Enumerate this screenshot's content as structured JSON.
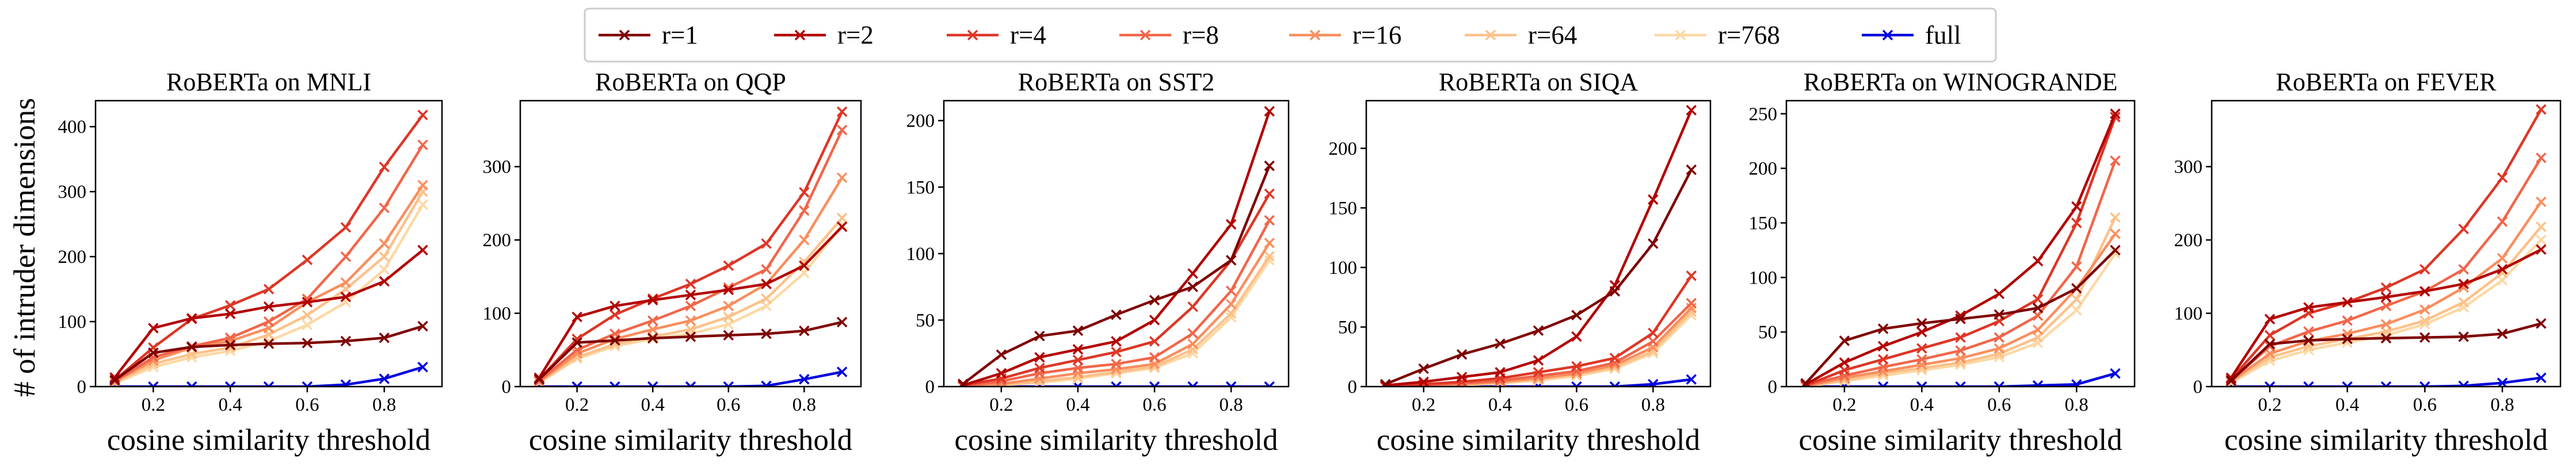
{
  "figure": {
    "ylabel": "# of intruder dimensions",
    "xlabel": "cosine similarity threshold"
  },
  "legend": [
    {
      "label": "r=1",
      "color": "#7f0000"
    },
    {
      "label": "r=2",
      "color": "#b30000"
    },
    {
      "label": "r=4",
      "color": "#de3626"
    },
    {
      "label": "r=8",
      "color": "#f1664a"
    },
    {
      "label": "r=16",
      "color": "#fa8e5e"
    },
    {
      "label": "r=64",
      "color": "#fdc18a"
    },
    {
      "label": "r=768",
      "color": "#fdd8a4"
    },
    {
      "label": "full",
      "color": "#0000dd"
    }
  ],
  "chart_data": [
    {
      "type": "line",
      "title": "RoBERTa on MNLI",
      "xlabel": "cosine similarity threshold",
      "ylabel": "# of intruder dimensions",
      "xlim": [
        0.05,
        0.95
      ],
      "ylim": [
        0,
        440
      ],
      "xticks": [
        0.2,
        0.4,
        0.6,
        0.8
      ],
      "xtick_labels": [
        "0.2",
        "0.4",
        "0.6",
        "0.8"
      ],
      "yticks": [
        0,
        100,
        200,
        300,
        400
      ],
      "ytick_labels": [
        "0",
        "100",
        "200",
        "300",
        "400"
      ],
      "x": [
        0.1,
        0.2,
        0.3,
        0.4,
        0.5,
        0.6,
        0.7,
        0.8,
        0.9
      ],
      "series": [
        {
          "name": "r=1",
          "values": [
            10,
            52,
            61,
            64,
            66,
            67,
            70,
            75,
            93
          ]
        },
        {
          "name": "r=2",
          "values": [
            14,
            90,
            105,
            112,
            123,
            130,
            138,
            162,
            210
          ]
        },
        {
          "name": "r=4",
          "values": [
            10,
            60,
            104,
            125,
            150,
            195,
            245,
            338,
            418
          ]
        },
        {
          "name": "r=8",
          "values": [
            8,
            45,
            62,
            75,
            100,
            135,
            200,
            275,
            372
          ]
        },
        {
          "name": "r=16",
          "values": [
            8,
            40,
            60,
            70,
            90,
            130,
            160,
            220,
            310
          ]
        },
        {
          "name": "r=64",
          "values": [
            6,
            35,
            50,
            60,
            80,
            110,
            150,
            200,
            300
          ]
        },
        {
          "name": "r=768",
          "values": [
            5,
            30,
            45,
            55,
            70,
            95,
            130,
            180,
            280
          ]
        },
        {
          "name": "full",
          "values": [
            0,
            0,
            0,
            0,
            0,
            0,
            3,
            12,
            30
          ]
        }
      ]
    },
    {
      "type": "line",
      "title": "RoBERTa on QQP",
      "xlabel": "cosine similarity threshold",
      "ylabel": "",
      "xlim": [
        0.05,
        0.95
      ],
      "ylim": [
        0,
        390
      ],
      "xticks": [
        0.2,
        0.4,
        0.6,
        0.8
      ],
      "xtick_labels": [
        "0.2",
        "0.4",
        "0.6",
        "0.8"
      ],
      "yticks": [
        0,
        100,
        200,
        300
      ],
      "ytick_labels": [
        "0",
        "100",
        "200",
        "300"
      ],
      "x": [
        0.1,
        0.2,
        0.3,
        0.4,
        0.5,
        0.6,
        0.7,
        0.8,
        0.9
      ],
      "series": [
        {
          "name": "r=1",
          "values": [
            10,
            60,
            63,
            66,
            68,
            70,
            72,
            76,
            88
          ]
        },
        {
          "name": "r=2",
          "values": [
            12,
            95,
            110,
            118,
            125,
            132,
            140,
            165,
            218
          ]
        },
        {
          "name": "r=4",
          "values": [
            10,
            65,
            98,
            120,
            140,
            165,
            195,
            265,
            375
          ]
        },
        {
          "name": "r=8",
          "values": [
            8,
            50,
            72,
            90,
            110,
            135,
            160,
            240,
            350
          ]
        },
        {
          "name": "r=16",
          "values": [
            7,
            45,
            65,
            78,
            90,
            110,
            140,
            200,
            285
          ]
        },
        {
          "name": "r=64",
          "values": [
            6,
            40,
            58,
            68,
            78,
            95,
            120,
            170,
            230
          ]
        },
        {
          "name": "r=768",
          "values": [
            5,
            38,
            55,
            65,
            72,
            85,
            110,
            155,
            220
          ]
        },
        {
          "name": "full",
          "values": [
            0,
            0,
            0,
            0,
            0,
            0,
            1,
            10,
            20
          ]
        }
      ]
    },
    {
      "type": "line",
      "title": "RoBERTa on SST2",
      "xlabel": "cosine similarity threshold",
      "ylabel": "",
      "xlim": [
        0.05,
        0.95
      ],
      "ylim": [
        0,
        215
      ],
      "xticks": [
        0.2,
        0.4,
        0.6,
        0.8
      ],
      "xtick_labels": [
        "0.2",
        "0.4",
        "0.6",
        "0.8"
      ],
      "yticks": [
        0,
        50,
        100,
        150,
        200
      ],
      "ytick_labels": [
        "0",
        "50",
        "100",
        "150",
        "200"
      ],
      "x": [
        0.1,
        0.2,
        0.3,
        0.4,
        0.5,
        0.6,
        0.7,
        0.8,
        0.9
      ],
      "series": [
        {
          "name": "r=1",
          "values": [
            2,
            24,
            38,
            42,
            54,
            65,
            75,
            95,
            166
          ]
        },
        {
          "name": "r=2",
          "values": [
            1,
            10,
            22,
            28,
            34,
            50,
            85,
            122,
            207
          ]
        },
        {
          "name": "r=4",
          "values": [
            1,
            6,
            14,
            20,
            26,
            34,
            60,
            95,
            145
          ]
        },
        {
          "name": "r=8",
          "values": [
            0,
            4,
            10,
            14,
            17,
            22,
            40,
            72,
            125
          ]
        },
        {
          "name": "r=16",
          "values": [
            0,
            2,
            6,
            10,
            13,
            17,
            32,
            62,
            108
          ]
        },
        {
          "name": "r=64",
          "values": [
            0,
            1,
            4,
            7,
            11,
            15,
            28,
            55,
            98
          ]
        },
        {
          "name": "r=768",
          "values": [
            0,
            1,
            3,
            6,
            10,
            14,
            25,
            52,
            95
          ]
        },
        {
          "name": "full",
          "values": [
            0,
            0,
            0,
            0,
            0,
            0,
            0,
            0,
            0
          ]
        }
      ]
    },
    {
      "type": "line",
      "title": "RoBERTa on SIQA",
      "xlabel": "cosine similarity threshold",
      "ylabel": "",
      "xlim": [
        0.05,
        0.95
      ],
      "ylim": [
        0,
        240
      ],
      "xticks": [
        0.2,
        0.4,
        0.6,
        0.8
      ],
      "xtick_labels": [
        "0.2",
        "0.4",
        "0.6",
        "0.8"
      ],
      "yticks": [
        0,
        50,
        100,
        150,
        200
      ],
      "ytick_labels": [
        "0",
        "50",
        "100",
        "150",
        "200"
      ],
      "x": [
        0.1,
        0.2,
        0.3,
        0.4,
        0.5,
        0.6,
        0.7,
        0.8,
        0.9
      ],
      "series": [
        {
          "name": "r=1",
          "values": [
            2,
            15,
            27,
            36,
            47,
            60,
            80,
            120,
            182
          ]
        },
        {
          "name": "r=2",
          "values": [
            1,
            4,
            8,
            12,
            22,
            42,
            85,
            157,
            232
          ]
        },
        {
          "name": "r=4",
          "values": [
            0,
            2,
            4,
            7,
            12,
            17,
            24,
            45,
            93
          ]
        },
        {
          "name": "r=8",
          "values": [
            0,
            1,
            3,
            5,
            9,
            13,
            20,
            38,
            70
          ]
        },
        {
          "name": "r=16",
          "values": [
            0,
            1,
            2,
            4,
            7,
            11,
            18,
            33,
            66
          ]
        },
        {
          "name": "r=64",
          "values": [
            0,
            1,
            2,
            3,
            6,
            10,
            16,
            30,
            63
          ]
        },
        {
          "name": "r=768",
          "values": [
            0,
            0,
            1,
            3,
            5,
            9,
            15,
            28,
            60
          ]
        },
        {
          "name": "full",
          "values": [
            0,
            0,
            0,
            0,
            0,
            0,
            0,
            2,
            6
          ]
        }
      ]
    },
    {
      "type": "line",
      "title": "RoBERTa on WINOGRANDE",
      "xlabel": "cosine similarity threshold",
      "ylabel": "",
      "xlim": [
        0.05,
        0.95
      ],
      "ylim": [
        0,
        262
      ],
      "xticks": [
        0.2,
        0.4,
        0.6,
        0.8
      ],
      "xtick_labels": [
        "0.2",
        "0.4",
        "0.6",
        "0.8"
      ],
      "yticks": [
        0,
        50,
        100,
        150,
        200,
        250
      ],
      "ytick_labels": [
        "0",
        "50",
        "100",
        "150",
        "200",
        "250"
      ],
      "x": [
        0.1,
        0.2,
        0.3,
        0.4,
        0.5,
        0.6,
        0.7,
        0.8,
        0.9
      ],
      "series": [
        {
          "name": "r=1",
          "values": [
            3,
            42,
            53,
            58,
            62,
            66,
            72,
            90,
            125
          ]
        },
        {
          "name": "r=2",
          "values": [
            2,
            22,
            37,
            50,
            65,
            85,
            115,
            165,
            250
          ]
        },
        {
          "name": "r=4",
          "values": [
            1,
            15,
            25,
            35,
            45,
            60,
            80,
            150,
            247
          ]
        },
        {
          "name": "r=8",
          "values": [
            1,
            10,
            18,
            25,
            33,
            45,
            65,
            110,
            207
          ]
        },
        {
          "name": "r=16",
          "values": [
            0,
            8,
            14,
            20,
            26,
            35,
            52,
            90,
            140
          ]
        },
        {
          "name": "r=64",
          "values": [
            0,
            6,
            12,
            17,
            22,
            30,
            45,
            80,
            155
          ]
        },
        {
          "name": "r=768",
          "values": [
            0,
            5,
            10,
            15,
            20,
            27,
            40,
            70,
            122
          ]
        },
        {
          "name": "full",
          "values": [
            0,
            0,
            0,
            0,
            0,
            0,
            1,
            2,
            12
          ]
        }
      ]
    },
    {
      "type": "line",
      "title": "RoBERTa on FEVER",
      "xlabel": "cosine similarity threshold",
      "ylabel": "",
      "xlim": [
        0.05,
        0.95
      ],
      "ylim": [
        0,
        390
      ],
      "xticks": [
        0.2,
        0.4,
        0.6,
        0.8
      ],
      "xtick_labels": [
        "0.2",
        "0.4",
        "0.6",
        "0.8"
      ],
      "yticks": [
        0,
        100,
        200,
        300
      ],
      "ytick_labels": [
        "0",
        "100",
        "200",
        "300"
      ],
      "x": [
        0.1,
        0.2,
        0.3,
        0.4,
        0.5,
        0.6,
        0.7,
        0.8,
        0.9
      ],
      "series": [
        {
          "name": "r=1",
          "values": [
            8,
            58,
            63,
            65,
            66,
            67,
            68,
            72,
            86
          ]
        },
        {
          "name": "r=2",
          "values": [
            12,
            92,
            108,
            115,
            122,
            130,
            140,
            160,
            187
          ]
        },
        {
          "name": "r=4",
          "values": [
            10,
            70,
            100,
            115,
            135,
            160,
            215,
            285,
            378
          ]
        },
        {
          "name": "r=8",
          "values": [
            8,
            55,
            75,
            90,
            110,
            130,
            160,
            225,
            312
          ]
        },
        {
          "name": "r=16",
          "values": [
            7,
            45,
            62,
            72,
            85,
            105,
            135,
            175,
            252
          ]
        },
        {
          "name": "r=64",
          "values": [
            6,
            40,
            55,
            65,
            75,
            90,
            115,
            155,
            218
          ]
        },
        {
          "name": "r=768",
          "values": [
            5,
            35,
            50,
            60,
            70,
            85,
            108,
            145,
            200
          ]
        },
        {
          "name": "full",
          "values": [
            0,
            0,
            0,
            0,
            0,
            0,
            1,
            5,
            12
          ]
        }
      ]
    }
  ]
}
